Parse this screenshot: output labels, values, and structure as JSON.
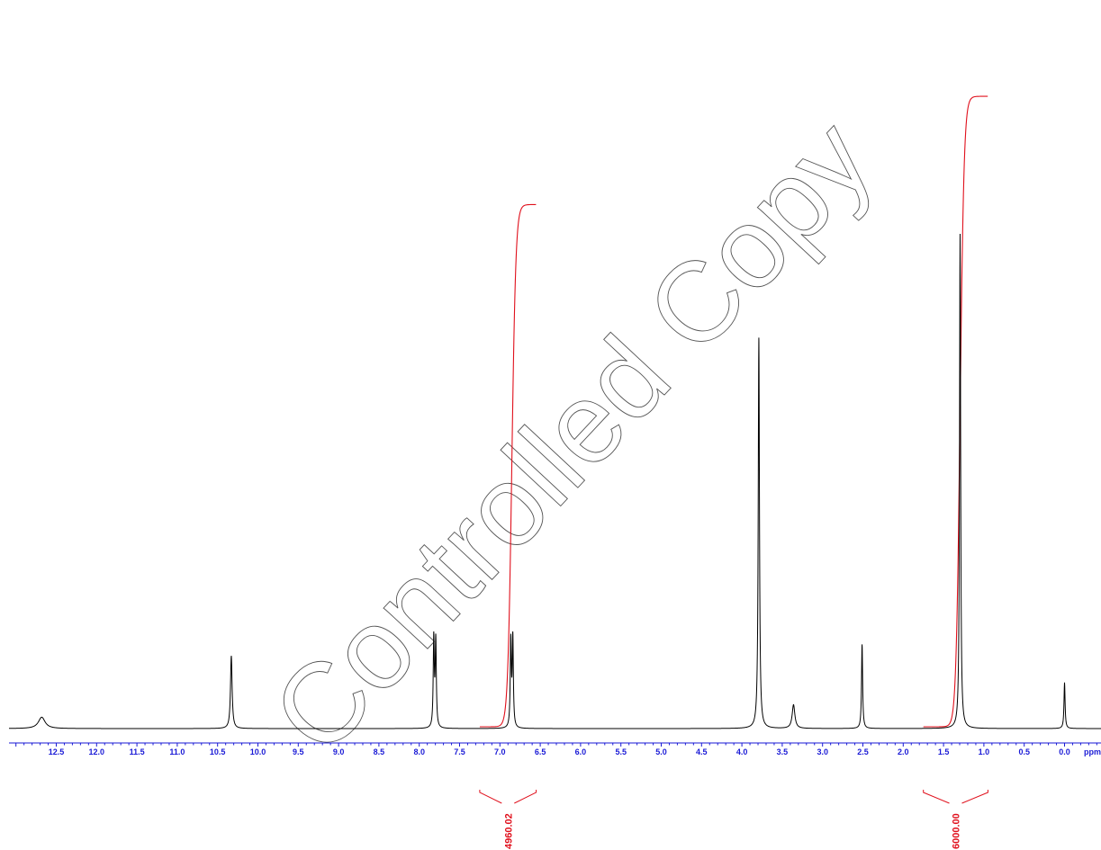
{
  "watermark": "Controlled Copy",
  "chart_data": {
    "type": "line",
    "title": "",
    "xlabel": "ppm",
    "ylabel": "",
    "xlim": [
      12.95,
      -0.45
    ],
    "reversed_x": true,
    "x_ticks": [
      "12.5",
      "12.0",
      "11.5",
      "11.0",
      "10.5",
      "10.0",
      "9.5",
      "9.0",
      "8.5",
      "8.0",
      "7.5",
      "7.0",
      "6.5",
      "6.0",
      "5.5",
      "5.0",
      "4.5",
      "4.0",
      "3.5",
      "3.0",
      "2.5",
      "2.0",
      "1.5",
      "1.0",
      "0.5",
      "0.0"
    ],
    "x_unit_label": "ppm",
    "grid": false,
    "colors": {
      "spectrum": "#000000",
      "integral": "#e0101c",
      "axis": "#1a1ad6"
    },
    "series": [
      {
        "peaks": [
          {
            "ppm": 12.68,
            "height": 0.023,
            "width": 0.05
          },
          {
            "ppm": 10.33,
            "height": 0.147,
            "width": 0.012
          },
          {
            "ppm": 7.82,
            "height": 0.18,
            "width": 0.008
          },
          {
            "ppm": 7.795,
            "height": 0.175,
            "width": 0.008
          },
          {
            "ppm": 6.865,
            "height": 0.175,
            "width": 0.008
          },
          {
            "ppm": 6.84,
            "height": 0.18,
            "width": 0.008
          },
          {
            "ppm": 3.79,
            "height": 0.79,
            "width": 0.009
          },
          {
            "ppm": 3.36,
            "height": 0.048,
            "width": 0.02
          },
          {
            "ppm": 2.51,
            "height": 0.17,
            "width": 0.008
          },
          {
            "ppm": 1.295,
            "height": 1.0,
            "width": 0.008
          },
          {
            "ppm": 0.0,
            "height": 0.093,
            "width": 0.008
          }
        ]
      }
    ],
    "integrals": [
      {
        "from": 7.25,
        "to": 6.55,
        "value": "4960.02",
        "level": 0.82
      },
      {
        "from": 1.75,
        "to": 0.95,
        "value": "6000.00",
        "level": 0.99
      }
    ]
  }
}
